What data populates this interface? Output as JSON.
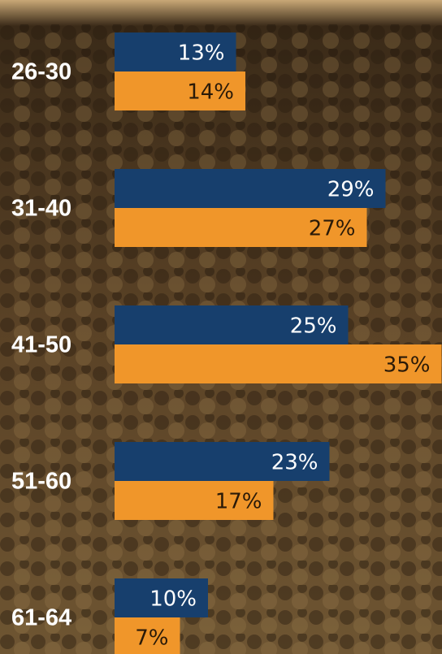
{
  "chart_data": {
    "type": "bar",
    "orientation": "horizontal",
    "categories": [
      "26-30",
      "31-40",
      "41-50",
      "51-60",
      "61-64"
    ],
    "series": [
      {
        "color": "#173f6d",
        "values": [
          13,
          29,
          25,
          23,
          10
        ],
        "value_labels": [
          "13%",
          "29%",
          "25%",
          "23%",
          "10%"
        ]
      },
      {
        "color": "#f0962a",
        "values": [
          14,
          27,
          35,
          17,
          7
        ],
        "value_labels": [
          "14%",
          "27%",
          "35%",
          "17%",
          "7%"
        ]
      }
    ]
  }
}
